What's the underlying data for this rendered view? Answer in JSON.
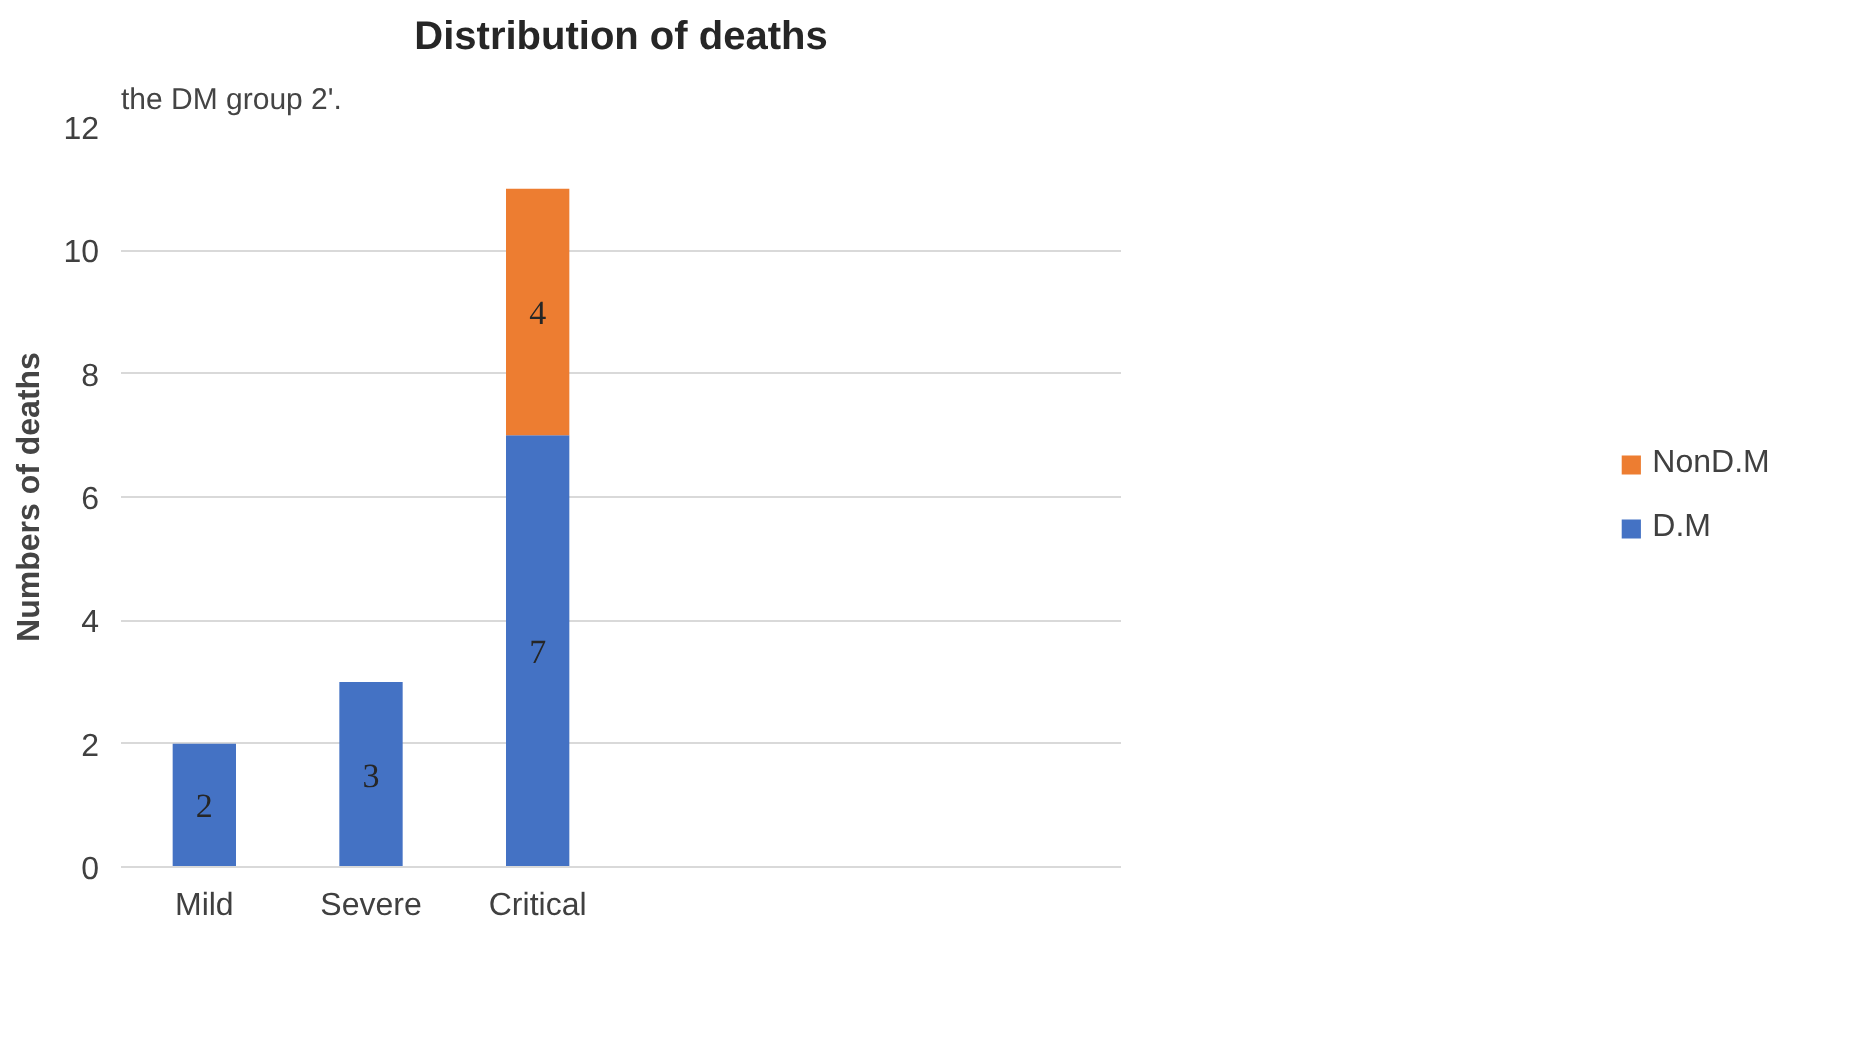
{
  "chart_data": {
    "type": "bar",
    "title": "Distribution of deaths",
    "ylabel": "Numbers of deaths",
    "annotations": [
      "the DM group 2'."
    ],
    "categories": [
      "Mild",
      "Severe",
      "Critical",
      null,
      null,
      null
    ],
    "stacked": true,
    "series": [
      {
        "name": "D.M",
        "color": "#4472c4",
        "values": [
          2,
          3,
          7,
          null,
          null,
          null
        ],
        "value_labels": [
          "2",
          "3",
          "7",
          null,
          null,
          null
        ]
      },
      {
        "name": "NonD.M",
        "color": "#ed7d31",
        "values": [
          0,
          0,
          4,
          null,
          null,
          null
        ],
        "value_labels": [
          null,
          null,
          "4",
          null,
          null,
          null
        ]
      }
    ],
    "ylim": [
      0,
      12
    ],
    "yticks": [
      0,
      2,
      4,
      6,
      8,
      10,
      12
    ],
    "grid": "y",
    "legend": "right"
  }
}
